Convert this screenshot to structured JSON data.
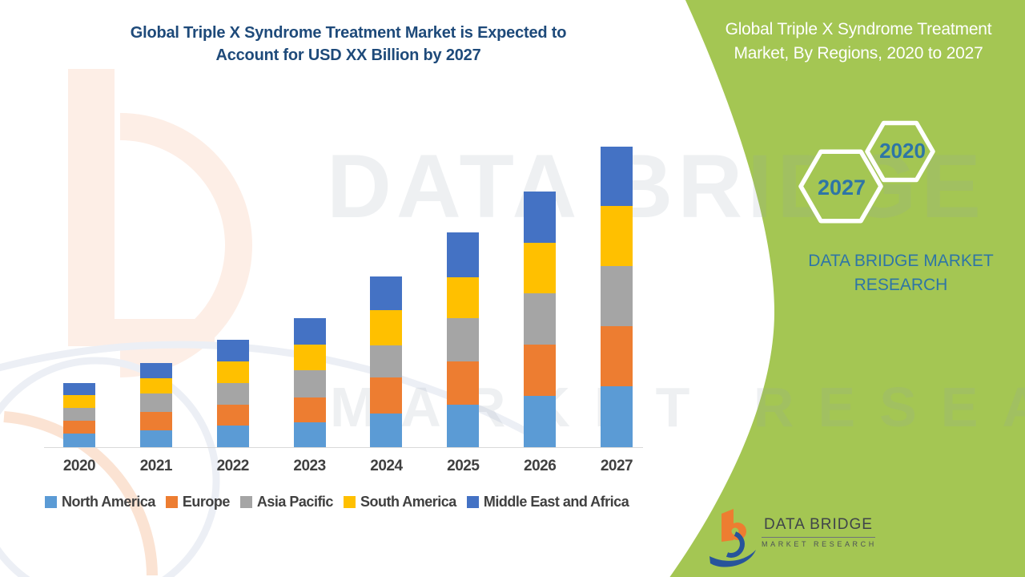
{
  "left_title": {
    "line1": "Global Triple X Syndrome Treatment Market is Expected to",
    "line2": "Account for USD XX Billion by 2027"
  },
  "right_panel": {
    "title_line1": "Global Triple X Syndrome Treatment",
    "title_line2": "Market, By Regions, 2020 to 2027",
    "hexagon_labels": {
      "back": "2020",
      "front": "2027"
    },
    "brand_line1": "DATA BRIDGE MARKET",
    "brand_line2": "RESEARCH",
    "logo": {
      "name": "DATA BRIDGE",
      "sub": "MARKET RESEARCH"
    },
    "colors": {
      "panel_green": "#A4C653",
      "hex_text_blue": "#2E75A6",
      "hex_outline": "#FFFFFF"
    }
  },
  "watermark": {
    "line1": "DATA BRIDGE",
    "line2": "MARKET RESEARCH"
  },
  "chart_data": {
    "type": "bar",
    "stacked": true,
    "title": "Global Triple X Syndrome Treatment Market is Expected to Account for USD XX Billion by 2027",
    "xlabel": "",
    "ylabel": "",
    "units": "relative units (no numeric y-axis shown; values estimated from bar heights, USD XX Billion placeholder)",
    "gridlines": false,
    "legend_position": "bottom",
    "categories": [
      "2020",
      "2021",
      "2022",
      "2023",
      "2024",
      "2025",
      "2026",
      "2027"
    ],
    "series": [
      {
        "name": "North America",
        "color": "#5B9BD5",
        "values": [
          17,
          21,
          27,
          31,
          42,
          53,
          64,
          76
        ]
      },
      {
        "name": "Europe",
        "color": "#ED7D31",
        "values": [
          16,
          23,
          26,
          31,
          45,
          54,
          64,
          75
        ]
      },
      {
        "name": "Asia Pacific",
        "color": "#A5A5A5",
        "values": [
          16,
          23,
          27,
          34,
          40,
          54,
          64,
          75
        ]
      },
      {
        "name": "South America",
        "color": "#FFC000",
        "values": [
          16,
          19,
          27,
          32,
          44,
          51,
          63,
          75
        ]
      },
      {
        "name": "Middle East and Africa",
        "color": "#4472C4",
        "values": [
          15,
          19,
          27,
          33,
          42,
          56,
          64,
          74
        ]
      }
    ],
    "totals": [
      80,
      105,
      134,
      161,
      213,
      268,
      319,
      375
    ],
    "ylim": [
      0,
      400
    ]
  }
}
